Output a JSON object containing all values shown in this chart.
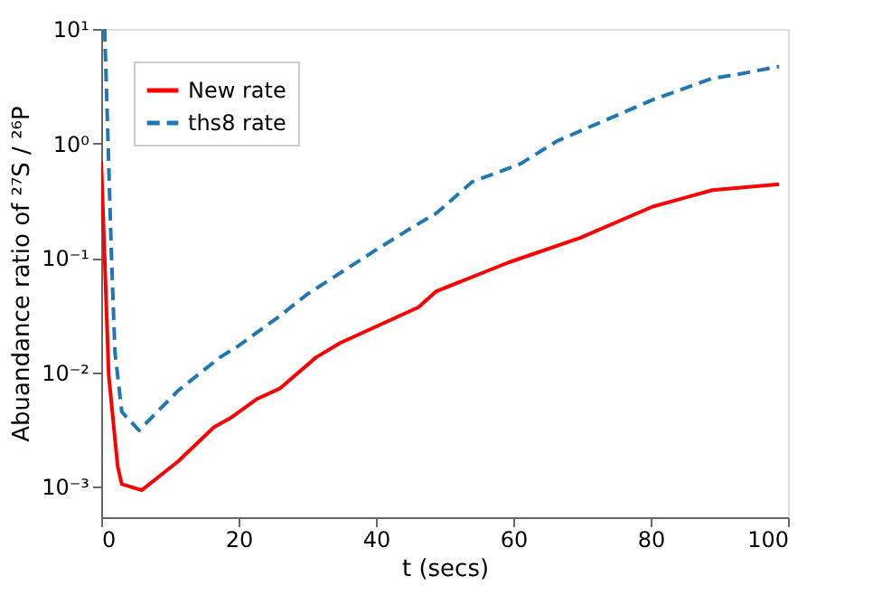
{
  "chart_data": {
    "type": "line",
    "xlabel": "t (secs)",
    "ylabel": "Abuandance ratio of ²⁷S / ²⁶P",
    "log": "y",
    "legend": "top left",
    "grid": false,
    "xlim": [
      0,
      100
    ],
    "xticks": [
      0,
      20,
      40,
      60,
      80,
      100
    ],
    "ylim": [
      0.00054,
      10
    ],
    "yticks": [
      {
        "value": 0.001,
        "label": "10⁻³"
      },
      {
        "value": 0.01,
        "label": "10⁻²"
      },
      {
        "value": 0.1,
        "label": "10⁻¹"
      },
      {
        "value": 1,
        "label": "10⁰"
      },
      {
        "value": 10,
        "label": "10¹"
      }
    ],
    "series": [
      {
        "name": "New rate",
        "color": "#ff0000",
        "line_style": "solid",
        "x": [
          0,
          0.5,
          1.1,
          2.4,
          3,
          5.9,
          11.2,
          16.4,
          18.9,
          22.6,
          26,
          31.3,
          34.8,
          41.8,
          46.2,
          48.8,
          59.3,
          69.8,
          80.3,
          89,
          98.7
        ],
        "values": [
          0.7,
          0.1,
          0.0093,
          0.0015,
          0.00105,
          0.00093,
          0.00166,
          0.0033,
          0.004,
          0.0058,
          0.0072,
          0.0135,
          0.018,
          0.028,
          0.037,
          0.051,
          0.091,
          0.15,
          0.28,
          0.39,
          0.44
        ]
      },
      {
        "name": "ths8 rate",
        "color": "#1f77b4",
        "line_style": "dashed",
        "x": [
          0.5,
          1,
          1.5,
          2,
          3,
          5.5,
          11.2,
          17.3,
          20,
          26,
          30,
          40,
          45,
          48.8,
          54,
          61,
          66.4,
          72.4,
          80.3,
          89,
          92.6,
          98.7
        ],
        "values": [
          10,
          1,
          0.1,
          0.015,
          0.0045,
          0.0031,
          0.0069,
          0.0135,
          0.017,
          0.031,
          0.048,
          0.117,
          0.18,
          0.245,
          0.46,
          0.66,
          1.05,
          1.5,
          2.4,
          3.7,
          4.0,
          4.7
        ]
      }
    ]
  }
}
